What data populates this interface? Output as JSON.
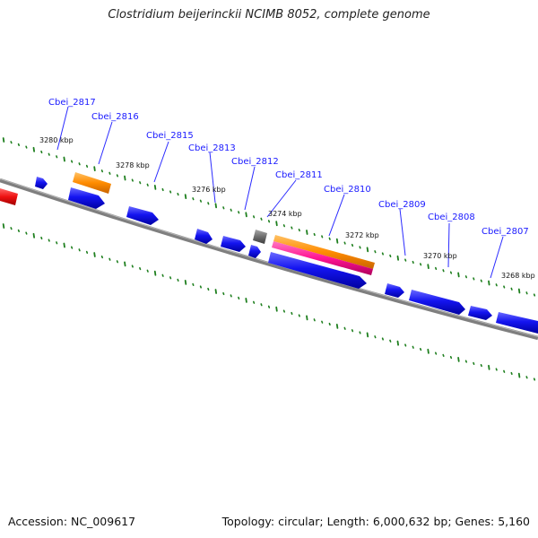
{
  "title": "Clostridium beijerinckii NCIMB 8052, complete genome",
  "footer": {
    "accession": "Accession: NC_009617",
    "summary": "Topology: circular; Length: 6,000,632 bp; Genes: 5,160"
  },
  "colors": {
    "backbone": "#7f7f7f",
    "cds": "#1010ee",
    "rrna": "#ff8c00",
    "trna": "#ff1493",
    "other": "#6e6e6e",
    "misc": "#ee1111",
    "tick": "#1e7f1e",
    "gene_label": "#1a1aff"
  },
  "gene_labels": [
    "Cbei_2817",
    "Cbei_2816",
    "Cbei_2815",
    "Cbei_2813",
    "Cbei_2812",
    "Cbei_2811",
    "Cbei_2810",
    "Cbei_2809",
    "Cbei_2808",
    "Cbei_2807"
  ],
  "kbp_labels": [
    "3280 kbp",
    "3278 kbp",
    "3276 kbp",
    "3274 kbp",
    "3272 kbp",
    "3270 kbp",
    "3268 kbp"
  ]
}
